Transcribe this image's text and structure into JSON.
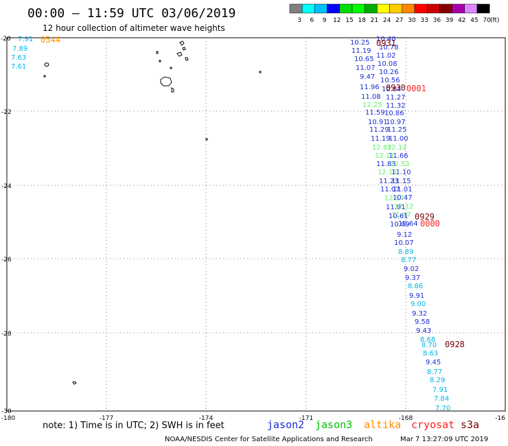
{
  "header": {
    "title": "00:00 — 11:59 UTC 03/06/2019",
    "subtitle": "12 hour collection of altimeter wave heights"
  },
  "legend_scale": {
    "unit_label": "(ft)",
    "ticks": [
      "3",
      "6",
      "9",
      "12",
      "15",
      "18",
      "21",
      "24",
      "27",
      "30",
      "33",
      "36",
      "39",
      "42",
      "45",
      "70"
    ],
    "colors": [
      "#7f7f7f",
      "#00ffff",
      "#00bfff",
      "#0000ff",
      "#00dd00",
      "#00ff00",
      "#00aa00",
      "#ffff00",
      "#ffcc00",
      "#ff8800",
      "#ff0000",
      "#cc0000",
      "#880000",
      "#aa00aa",
      "#dd88ff",
      "#000000"
    ]
  },
  "axes": {
    "lat_labels": [
      "-20",
      "-22",
      "-24",
      "-26",
      "-28",
      "-30"
    ],
    "lon_labels": [
      "-180",
      "-177",
      "-174",
      "-171",
      "-168",
      "-16"
    ]
  },
  "satellite_colors": {
    "jason2": "#1a2bd6",
    "jason3": "#00c000",
    "altika": "#ff8c00",
    "cryosat": "#ff2020",
    "s3a": "#7a0000",
    "jason2_light": "#00b4e6",
    "jason3_light": "#66ee66"
  },
  "track_labels": [
    {
      "text": "10.25",
      "sat": "jason2"
    },
    {
      "text": "10.40",
      "sat": "jason2"
    },
    {
      "text": "10.78",
      "sat": "jason2"
    },
    {
      "text": "11.19",
      "sat": "jason2"
    },
    {
      "text": "11.02",
      "sat": "jason2"
    },
    {
      "text": "10.65",
      "sat": "jason2"
    },
    {
      "text": "10.08",
      "sat": "jason2"
    },
    {
      "text": "11.07",
      "sat": "jason2"
    },
    {
      "text": "10.26",
      "sat": "jason2"
    },
    {
      "text": "9.47",
      "sat": "jason2"
    },
    {
      "text": "10.56",
      "sat": "jason2"
    },
    {
      "text": "11.96",
      "sat": "jason2"
    },
    {
      "text": "10.84",
      "sat": "jason2"
    },
    {
      "text": "11.08",
      "sat": "jason2"
    },
    {
      "text": "11.27",
      "sat": "jason2"
    },
    {
      "text": "12.25",
      "sat": "jason3_light"
    },
    {
      "text": "11.32",
      "sat": "jason2"
    },
    {
      "text": "11.59",
      "sat": "jason2"
    },
    {
      "text": "10.86",
      "sat": "jason2"
    },
    {
      "text": "10.91",
      "sat": "jason2"
    },
    {
      "text": "10.97",
      "sat": "jason2"
    },
    {
      "text": "11.29",
      "sat": "jason2"
    },
    {
      "text": "11.25",
      "sat": "jason2"
    },
    {
      "text": "11.19",
      "sat": "jason2"
    },
    {
      "text": "11.00",
      "sat": "jason2"
    },
    {
      "text": "12.82",
      "sat": "jason3_light"
    },
    {
      "text": "12.12",
      "sat": "jason3_light"
    },
    {
      "text": "12.11",
      "sat": "jason3_light"
    },
    {
      "text": "11.66",
      "sat": "jason2"
    },
    {
      "text": "11.83",
      "sat": "jason2"
    },
    {
      "text": "12.53",
      "sat": "jason3_light"
    },
    {
      "text": "12.11",
      "sat": "jason3_light"
    },
    {
      "text": "11.10",
      "sat": "jason2"
    },
    {
      "text": "11.23",
      "sat": "jason2"
    },
    {
      "text": "11.15",
      "sat": "jason2"
    },
    {
      "text": "11.07",
      "sat": "jason2"
    },
    {
      "text": "11.01",
      "sat": "jason2"
    },
    {
      "text": "12.17",
      "sat": "jason3_light"
    },
    {
      "text": "10.47",
      "sat": "jason2"
    },
    {
      "text": "11.91",
      "sat": "jason2"
    },
    {
      "text": "12.12",
      "sat": "jason3_light"
    },
    {
      "text": "11.47",
      "sat": "jason3_light"
    },
    {
      "text": "10.61",
      "sat": "jason2"
    },
    {
      "text": "10.09",
      "sat": "jason2"
    },
    {
      "text": "10.64",
      "sat": "jason2"
    },
    {
      "text": "9.12",
      "sat": "jason2"
    },
    {
      "text": "10.07",
      "sat": "jason2"
    },
    {
      "text": "8.89",
      "sat": "jason2_light"
    },
    {
      "text": "8.77",
      "sat": "jason2_light"
    },
    {
      "text": "9.02",
      "sat": "jason2"
    },
    {
      "text": "9.37",
      "sat": "jason2"
    },
    {
      "text": "8.86",
      "sat": "jason2_light"
    },
    {
      "text": "9.91",
      "sat": "jason2"
    },
    {
      "text": "9.00",
      "sat": "jason2_light"
    },
    {
      "text": "9.32",
      "sat": "jason2"
    },
    {
      "text": "9.58",
      "sat": "jason2"
    },
    {
      "text": "9.43",
      "sat": "jason2"
    },
    {
      "text": "8.68",
      "sat": "jason2_light"
    },
    {
      "text": "8.70",
      "sat": "jason2_light"
    },
    {
      "text": "8.63",
      "sat": "jason2_light"
    },
    {
      "text": "9.45",
      "sat": "jason2"
    },
    {
      "text": "8.77",
      "sat": "jason2_light"
    },
    {
      "text": "8.29",
      "sat": "jason2_light"
    },
    {
      "text": "7.91",
      "sat": "jason2_light"
    },
    {
      "text": "7.84",
      "sat": "jason2_light"
    },
    {
      "text": "7.70",
      "sat": "jason2_light"
    },
    {
      "text": "7.91",
      "sat": "jason2_light"
    },
    {
      "text": "7.89",
      "sat": "jason2_light"
    },
    {
      "text": "7.63",
      "sat": "jason2_light"
    },
    {
      "text": "7.61",
      "sat": "jason2_light"
    }
  ],
  "time_labels": [
    {
      "text": "0544",
      "sat": "altika"
    },
    {
      "text": "0931",
      "sat": "s3a"
    },
    {
      "text": "0930",
      "sat": "s3a"
    },
    {
      "text": "0001",
      "sat": "cryosat"
    },
    {
      "text": "0929",
      "sat": "s3a"
    },
    {
      "text": "0000",
      "sat": "cryosat"
    },
    {
      "text": "0928",
      "sat": "s3a"
    }
  ],
  "footer": {
    "note": "note: 1) Time is in UTC; 2) SWH is in feet",
    "legend": [
      {
        "name": "jason2",
        "sat": "jason2"
      },
      {
        "name": "jason3",
        "sat": "jason3"
      },
      {
        "name": "altika",
        "sat": "altika"
      },
      {
        "name": "cryosat",
        "sat": "cryosat"
      },
      {
        "name": "s3a",
        "sat": "s3a"
      }
    ],
    "credit": "NOAA/NESDIS Center for Satellite Applications and Research",
    "timestamp": "Mar  7 13:27:09 UTC 2019"
  }
}
